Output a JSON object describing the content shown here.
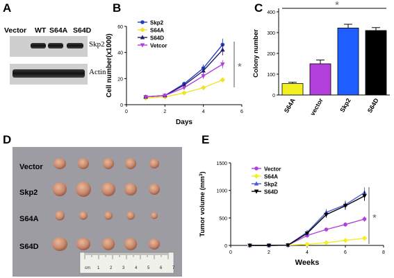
{
  "panels": {
    "A": "A",
    "B": "B",
    "C": "C",
    "D": "D",
    "E": "E"
  },
  "blot": {
    "lanes": [
      "Vector",
      "WT",
      "S64A",
      "S64D"
    ],
    "rows": [
      "Skp2",
      "Actin"
    ]
  },
  "photo": {
    "rows": [
      "Vector",
      "Skp2",
      "S64A",
      "S64D"
    ],
    "ruler": [
      "cm",
      "1",
      "2",
      "3",
      "4",
      "5",
      "6",
      "7"
    ]
  },
  "chart_data": [
    {
      "id": "B",
      "type": "line",
      "xlabel": "Days",
      "ylabel": "Cell number(x1000)",
      "xlim": [
        0,
        6
      ],
      "ylim": [
        0,
        60
      ],
      "xticks": [
        0,
        2,
        4,
        6
      ],
      "yticks": [
        0,
        20,
        40,
        60
      ],
      "x": [
        1,
        2,
        3,
        4,
        5
      ],
      "series": [
        {
          "name": "Skp2",
          "color": "#1f3fbf",
          "values": [
            6,
            7,
            16,
            28,
            46
          ]
        },
        {
          "name": "S64A",
          "color": "#f2e227",
          "values": [
            5,
            6,
            9,
            13,
            19
          ]
        },
        {
          "name": "S64D",
          "color": "#2a1a6e",
          "values": [
            6,
            7,
            15,
            26,
            42
          ]
        },
        {
          "name": "Vetcor",
          "color": "#b23fd9",
          "values": [
            6,
            7,
            13,
            22,
            31
          ]
        }
      ],
      "significance": "*",
      "legend": "top-left"
    },
    {
      "id": "C",
      "type": "bar",
      "ylabel": "Colony number",
      "ylim": [
        0,
        400
      ],
      "yticks": [
        0,
        100,
        200,
        300,
        400
      ],
      "categories": [
        "S64A",
        "vector",
        "Skp2",
        "S64D"
      ],
      "values": [
        55,
        150,
        322,
        310
      ],
      "errors": [
        6,
        18,
        18,
        14
      ],
      "colors": [
        "#f2f020",
        "#b23fd9",
        "#1f5fff",
        "#000000"
      ],
      "significance": "*"
    },
    {
      "id": "E",
      "type": "line",
      "xlabel": "Weeks",
      "ylabel": "Tumor volume (mm",
      "ylabel_sup": "3",
      "ylabel_end": ")",
      "xlim": [
        0,
        8
      ],
      "ylim": [
        0,
        1500
      ],
      "xticks": [
        0,
        2,
        4,
        6,
        8
      ],
      "yticks": [
        0,
        500,
        1000,
        1500
      ],
      "x": [
        1,
        2,
        3,
        4,
        5,
        6,
        7
      ],
      "series": [
        {
          "name": "Vector",
          "color": "#b23fd9",
          "values": [
            0,
            0,
            5,
            180,
            290,
            380,
            480
          ]
        },
        {
          "name": "S64A",
          "color": "#f2f020",
          "values": [
            0,
            0,
            5,
            20,
            50,
            90,
            130
          ]
        },
        {
          "name": "Skp2",
          "color": "#4a5ad8",
          "values": [
            0,
            0,
            5,
            240,
            600,
            740,
            960
          ]
        },
        {
          "name": "S64D",
          "color": "#000000",
          "values": [
            0,
            0,
            5,
            220,
            560,
            720,
            900
          ]
        }
      ],
      "significance": "*",
      "legend": "top-left"
    }
  ]
}
